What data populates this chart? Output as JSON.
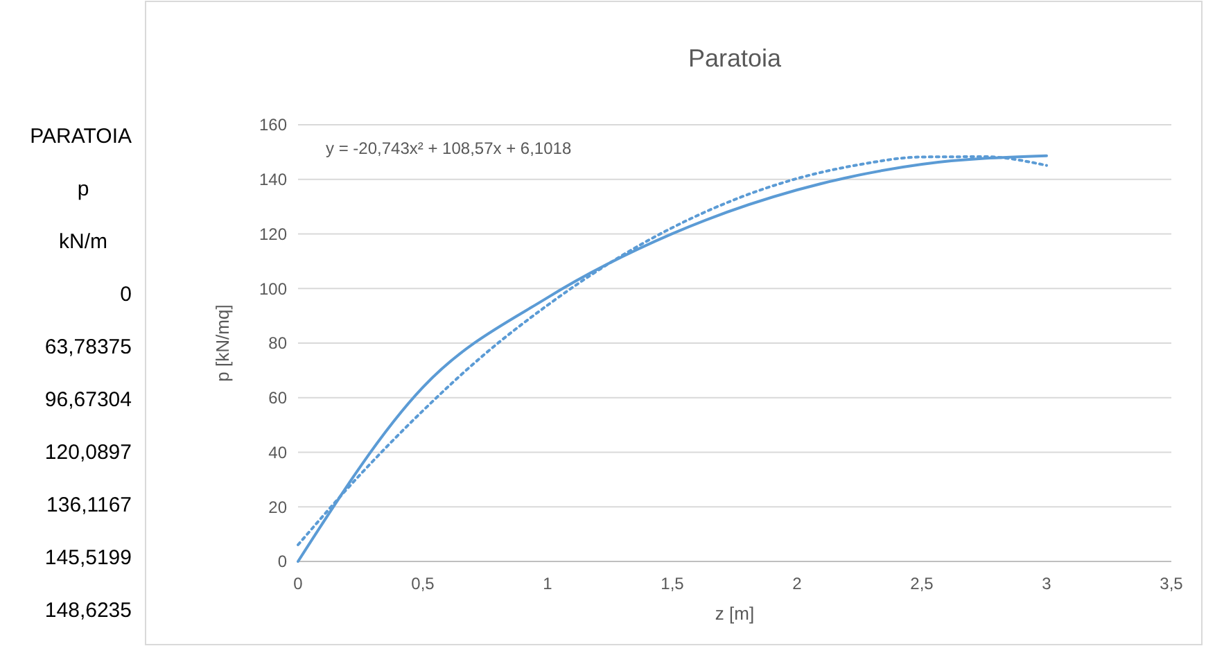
{
  "chart_data": {
    "type": "line",
    "title": "Paratoia",
    "xlabel": "z [m]",
    "ylabel": "p [kN/mq]",
    "x": [
      0,
      0.5,
      1,
      1.5,
      2,
      2.5,
      3
    ],
    "series": [
      {
        "color": "#5b9bd5",
        "values": [
          0,
          63.78375,
          96.67304,
          120.0897,
          136.1167,
          145.5199,
          148.6235
        ]
      },
      {
        "type": "line",
        "line_style": "dotted",
        "color": "#5b9bd5",
        "x": [
          0,
          0.25,
          0.5,
          0.75,
          1,
          1.25,
          1.5,
          1.75,
          2,
          2.25,
          2.5,
          2.75,
          3
        ],
        "values": [
          6.1,
          31.9,
          55.2,
          76.1,
          93.9,
          109.4,
          122.3,
          132.6,
          140.3,
          145.4,
          148.2,
          148.3,
          145.1
        ]
      }
    ],
    "annotations": [
      "y = -20,743x² + 108,57x + 6,1018",
      "PARATOIA",
      "p",
      "kN/m",
      "0",
      "63,78375",
      "96,67304",
      "120,0897",
      "136,1167",
      "145,5199",
      "148,6235"
    ],
    "xlim": [
      0,
      3.5
    ],
    "xticks": [
      0,
      {
        "value": 0.5,
        "label": "0,5"
      },
      1,
      {
        "value": 1.5,
        "label": "1,5"
      },
      2,
      {
        "value": 2.5,
        "label": "2,5"
      },
      3,
      {
        "value": 3.5,
        "label": "3,5"
      }
    ],
    "ylim": [
      0,
      160
    ],
    "yticks": [
      0,
      20,
      40,
      60,
      80,
      100,
      120,
      140,
      160
    ],
    "grid": "y",
    "marker": "none",
    "line_style": "solid"
  }
}
